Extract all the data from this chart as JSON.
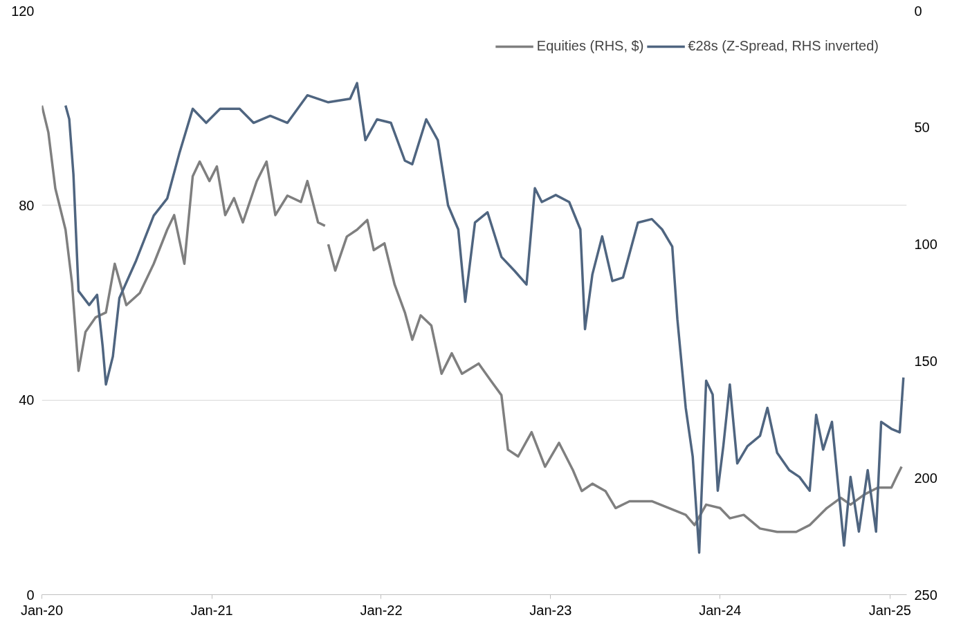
{
  "chart_data": {
    "type": "line",
    "xlim": [
      "2020-01-01",
      "2025-02-06"
    ],
    "xticks": [
      {
        "value": "2020-01-01",
        "label": "Jan-20"
      },
      {
        "value": "2021-01-01",
        "label": "Jan-21"
      },
      {
        "value": "2022-01-01",
        "label": "Jan-22"
      },
      {
        "value": "2023-01-01",
        "label": "Jan-23"
      },
      {
        "value": "2024-01-01",
        "label": "Jan-24"
      },
      {
        "value": "2025-01-01",
        "label": "Jan-25"
      }
    ],
    "ylim": [
      0,
      120
    ],
    "yticks": [
      0,
      40,
      80,
      120
    ],
    "y2lim": [
      250,
      0
    ],
    "y2ticks": [
      0,
      50,
      100,
      150,
      200,
      250
    ],
    "grid": "y",
    "legend": "top right",
    "line_style": "solid",
    "series": [
      {
        "name": "Equities (RHS, $)",
        "color": "#7f7f7f",
        "x": [
          "2020-01-01",
          "2020-01-15",
          "2020-01-30",
          "2020-02-21",
          "2020-03-06",
          "2020-03-20",
          "2020-04-04",
          "2020-04-26",
          "2020-05-18",
          "2020-06-06",
          "2020-07-01",
          "2020-07-30",
          "2020-08-29",
          "2020-09-27",
          "2020-10-12",
          "2020-11-03",
          "2020-11-21",
          "2020-12-06",
          "2020-12-27",
          "2021-01-12",
          "2021-01-30",
          "2021-02-18",
          "2021-03-09",
          "2021-04-08",
          "2021-04-29",
          "2021-05-18",
          "2021-06-13",
          "2021-07-12",
          "2021-07-26",
          "2021-08-18",
          "2021-09-02",
          "2021-09-06",
          "2021-09-09",
          "2021-09-24",
          "2021-10-19",
          "2021-11-10",
          "2021-12-02",
          "2021-12-16",
          "2022-01-08",
          "2022-01-30",
          "2022-02-21",
          "2022-03-09",
          "2022-03-27",
          "2022-04-19",
          "2022-05-11",
          "2022-06-02",
          "2022-06-24",
          "2022-07-30",
          "2022-08-25",
          "2022-09-17",
          "2022-10-01",
          "2022-10-23",
          "2022-11-21",
          "2022-12-20",
          "2023-01-19",
          "2023-02-18",
          "2023-03-09",
          "2023-04-01",
          "2023-04-29",
          "2023-05-21",
          "2023-06-20",
          "2023-08-07",
          "2023-09-13",
          "2023-10-19",
          "2023-11-07",
          "2023-12-02",
          "2024-01-01",
          "2024-01-22",
          "2024-02-21",
          "2024-03-27",
          "2024-05-03",
          "2024-06-13",
          "2024-07-12",
          "2024-08-18",
          "2024-09-17",
          "2024-10-08",
          "2024-11-07",
          "2024-12-06",
          "2025-01-04",
          "2025-01-15",
          "2025-01-26"
        ],
        "values": [
          100.5,
          95,
          83.5,
          75,
          64,
          46,
          54,
          57,
          58,
          68,
          59.5,
          62,
          68,
          75,
          78,
          68,
          86,
          89,
          85,
          88,
          78,
          81.5,
          76.5,
          85,
          89,
          78,
          82,
          80.7,
          85,
          76.5,
          75.8,
          null,
          72,
          66.6,
          73.6,
          75,
          77,
          70.8,
          72.2,
          63.7,
          58,
          52.4,
          57.4,
          55.3,
          45.4,
          49.6,
          45.4,
          47.5,
          44,
          41,
          29.8,
          28.4,
          33.4,
          26.3,
          31.2,
          25.6,
          21.3,
          22.8,
          21.3,
          17.8,
          19.2,
          19.2,
          17.8,
          16.4,
          14.3,
          18.5,
          17.8,
          15.7,
          16.4,
          13.6,
          12.9,
          12.9,
          14.3,
          17.8,
          19.9,
          18.5,
          20.6,
          22,
          22,
          24.2,
          26.3
        ]
      },
      {
        "name": "€28s (Z-Spread, RHS inverted)",
        "color": "#4f6580",
        "axis": "y2",
        "x": [
          "2020-02-21",
          "2020-02-29",
          "2020-03-09",
          "2020-03-20",
          "2020-04-12",
          "2020-04-29",
          "2020-05-11",
          "2020-05-18",
          "2020-06-02",
          "2020-06-16",
          "2020-07-22",
          "2020-08-29",
          "2020-09-27",
          "2020-10-23",
          "2020-11-21",
          "2020-12-20",
          "2021-01-19",
          "2021-03-02",
          "2021-04-01",
          "2021-05-07",
          "2021-06-13",
          "2021-07-26",
          "2021-09-09",
          "2021-10-26",
          "2021-11-10",
          "2021-11-28",
          "2021-12-23",
          "2022-01-22",
          "2022-02-21",
          "2022-03-09",
          "2022-04-08",
          "2022-05-03",
          "2022-05-25",
          "2022-06-16",
          "2022-07-01",
          "2022-07-22",
          "2022-08-18",
          "2022-09-17",
          "2022-10-15",
          "2022-11-10",
          "2022-11-28",
          "2022-12-13",
          "2023-01-12",
          "2023-02-10",
          "2023-03-06",
          "2023-03-16",
          "2023-04-01",
          "2023-04-22",
          "2023-05-14",
          "2023-06-06",
          "2023-07-08",
          "2023-08-07",
          "2023-08-29",
          "2023-09-20",
          "2023-10-01",
          "2023-10-19",
          "2023-11-03",
          "2023-11-17",
          "2023-12-02",
          "2023-12-16",
          "2023-12-27",
          "2024-01-08",
          "2024-01-22",
          "2024-02-07",
          "2024-02-29",
          "2024-03-27",
          "2024-04-12",
          "2024-05-03",
          "2024-05-29",
          "2024-06-20",
          "2024-07-12",
          "2024-07-26",
          "2024-08-10",
          "2024-08-29",
          "2024-09-24",
          "2024-10-08",
          "2024-10-26",
          "2024-11-14",
          "2024-12-02",
          "2024-12-13",
          "2025-01-04",
          "2025-01-22",
          "2025-01-30"
        ],
        "values": [
          40.6,
          46.4,
          70,
          120,
          126,
          121.6,
          143.7,
          160,
          148,
          123,
          107,
          87.7,
          80.4,
          61.2,
          42,
          48,
          42,
          42,
          48,
          45,
          48,
          36.2,
          39.2,
          37.7,
          31,
          55.4,
          46.5,
          48,
          64.2,
          65.7,
          46.5,
          55.4,
          83.3,
          93.6,
          124.6,
          90.7,
          86.3,
          105.4,
          111.3,
          117.2,
          76,
          81.9,
          78.9,
          81.9,
          93.6,
          136.3,
          112.8,
          96.6,
          115.7,
          114.2,
          90.7,
          89.2,
          93.6,
          101,
          132,
          170,
          190.8,
          232,
          158.4,
          164.3,
          205.5,
          186.4,
          160,
          193.8,
          186.4,
          182,
          170,
          189.3,
          196.7,
          199.6,
          205.5,
          173,
          187.9,
          176,
          229,
          199.6,
          223,
          196.7,
          223,
          176,
          179,
          180.5,
          157
        ]
      }
    ]
  }
}
